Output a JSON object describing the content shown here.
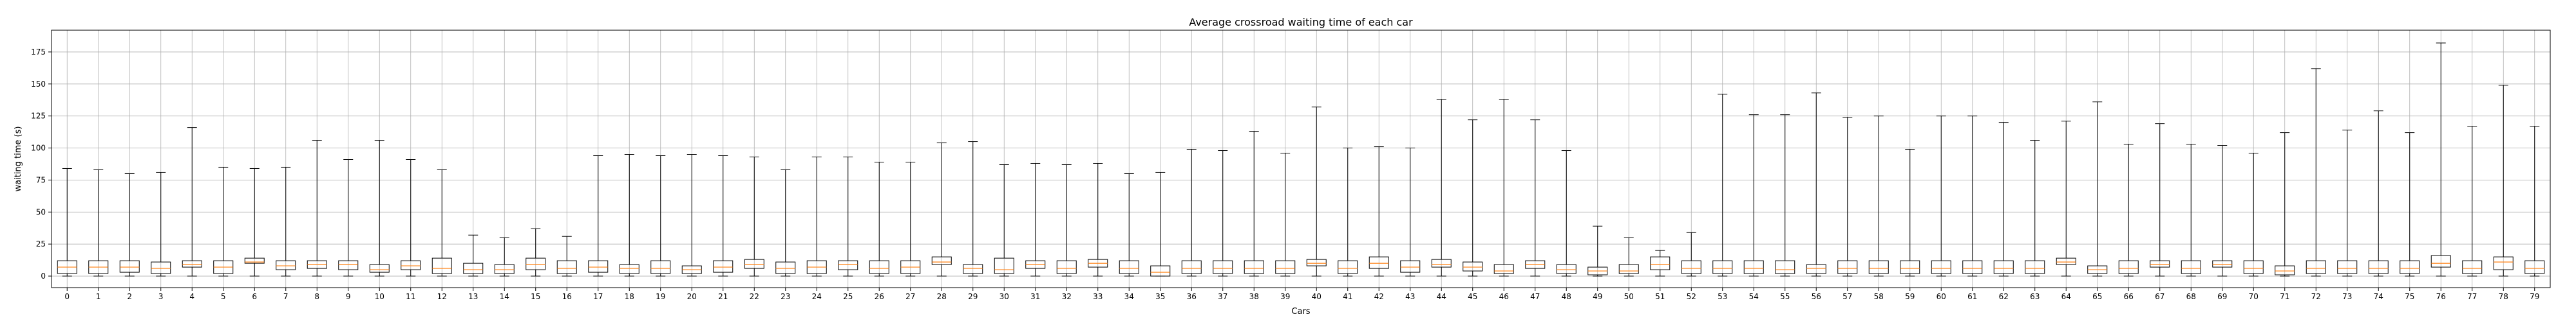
{
  "chart_data": {
    "type": "boxplot",
    "title": "Average crossroad waiting time of each car",
    "xlabel": "Cars",
    "ylabel": "waiting time (s)",
    "ylim": [
      -9,
      192
    ],
    "yticks": [
      0,
      25,
      50,
      75,
      100,
      125,
      150,
      175
    ],
    "grid": true,
    "colors": {
      "box": "#000000",
      "median": "#ff7f0e",
      "grid": "#b0b0b0"
    },
    "categories": [
      "0",
      "1",
      "2",
      "3",
      "4",
      "5",
      "6",
      "7",
      "8",
      "9",
      "10",
      "11",
      "12",
      "13",
      "14",
      "15",
      "16",
      "17",
      "18",
      "19",
      "20",
      "21",
      "22",
      "23",
      "24",
      "25",
      "26",
      "27",
      "28",
      "29",
      "30",
      "31",
      "32",
      "33",
      "34",
      "35",
      "36",
      "37",
      "38",
      "39",
      "40",
      "41",
      "42",
      "43",
      "44",
      "45",
      "46",
      "47",
      "48",
      "49",
      "50",
      "51",
      "52",
      "53",
      "54",
      "55",
      "56",
      "57",
      "58",
      "59",
      "60",
      "61",
      "62",
      "63",
      "64",
      "65",
      "66",
      "67",
      "68",
      "69",
      "70",
      "71",
      "72",
      "73",
      "74",
      "75",
      "76",
      "77",
      "78",
      "79"
    ],
    "whisker_min": [
      0,
      0,
      0,
      0,
      0,
      0,
      0,
      0,
      0,
      0,
      0,
      0,
      0,
      0,
      0,
      0,
      0,
      0,
      0,
      0,
      0,
      0,
      0,
      0,
      0,
      0,
      0,
      0,
      0,
      0,
      0,
      0,
      0,
      0,
      0,
      0,
      0,
      0,
      0,
      0,
      0,
      0,
      0,
      0,
      0,
      0,
      0,
      0,
      0,
      0,
      0,
      0,
      0,
      0,
      0,
      0,
      0,
      0,
      0,
      0,
      0,
      0,
      0,
      0,
      0,
      0,
      0,
      0,
      0,
      0,
      0,
      0,
      0,
      0,
      0,
      0,
      0,
      0,
      0,
      0
    ],
    "q1": [
      2,
      2,
      3,
      2,
      7,
      2,
      10,
      5,
      6,
      5,
      3,
      5,
      2,
      2,
      2,
      5,
      2,
      3,
      2,
      2,
      2,
      3,
      6,
      2,
      2,
      5,
      2,
      2,
      9,
      2,
      2,
      6,
      2,
      7,
      2,
      0,
      2,
      2,
      2,
      2,
      8,
      2,
      6,
      3,
      7,
      4,
      2,
      6,
      2,
      1,
      2,
      5,
      2,
      2,
      2,
      2,
      2,
      2,
      2,
      2,
      2,
      2,
      2,
      2,
      9,
      2,
      2,
      7,
      2,
      7,
      2,
      1,
      2,
      2,
      2,
      2,
      7,
      2,
      5,
      2
    ],
    "median": [
      7,
      7,
      7,
      6,
      9,
      7,
      11,
      8,
      9,
      9,
      5,
      8,
      6,
      5,
      5,
      9,
      6,
      7,
      6,
      6,
      5,
      7,
      9,
      6,
      7,
      9,
      6,
      7,
      11,
      6,
      5,
      9,
      6,
      10,
      6,
      3,
      6,
      6,
      6,
      6,
      10,
      6,
      10,
      7,
      9,
      7,
      4,
      9,
      5,
      4,
      4,
      9,
      6,
      6,
      6,
      5,
      6,
      6,
      6,
      6,
      6,
      6,
      6,
      6,
      11,
      5,
      6,
      9,
      6,
      9,
      6,
      4,
      6,
      6,
      6,
      6,
      10,
      6,
      11,
      6
    ],
    "q3": [
      12,
      12,
      12,
      11,
      12,
      12,
      14,
      12,
      12,
      12,
      9,
      12,
      14,
      10,
      9,
      14,
      12,
      12,
      9,
      12,
      8,
      12,
      13,
      11,
      12,
      12,
      12,
      12,
      15,
      9,
      14,
      12,
      12,
      13,
      12,
      8,
      12,
      12,
      12,
      12,
      13,
      12,
      15,
      12,
      13,
      11,
      9,
      12,
      9,
      7,
      9,
      15,
      12,
      12,
      12,
      12,
      9,
      12,
      12,
      12,
      12,
      12,
      12,
      12,
      14,
      8,
      12,
      12,
      12,
      12,
      12,
      8,
      12,
      12,
      12,
      12,
      16,
      12,
      15,
      12
    ],
    "whisker_max": [
      84,
      83,
      80,
      81,
      116,
      85,
      84,
      85,
      106,
      91,
      106,
      91,
      83,
      32,
      30,
      37,
      31,
      94,
      95,
      94,
      95,
      94,
      93,
      83,
      93,
      93,
      89,
      89,
      104,
      105,
      87,
      88,
      87,
      88,
      80,
      81,
      99,
      98,
      113,
      96,
      132,
      100,
      101,
      100,
      138,
      122,
      138,
      122,
      98,
      39,
      30,
      20,
      34,
      142,
      126,
      126,
      143,
      124,
      125,
      99,
      125,
      125,
      120,
      106,
      121,
      136,
      103,
      119,
      103,
      102,
      96,
      112,
      162,
      114,
      129,
      112,
      182,
      117,
      149,
      117
    ]
  }
}
